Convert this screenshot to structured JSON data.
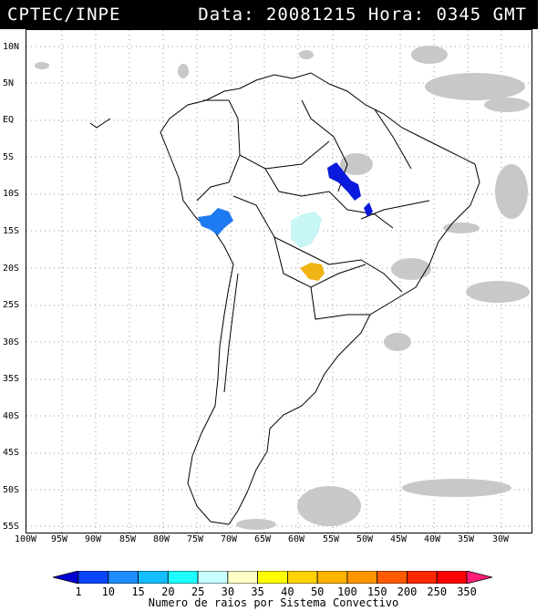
{
  "header": {
    "org": "CPTEC/INPE",
    "datetime": "Data: 20081215 Hora: 0345 GMT"
  },
  "map": {
    "lat_labels": [
      "10N",
      "5N",
      "EQ",
      "5S",
      "10S",
      "15S",
      "20S",
      "25S",
      "30S",
      "35S",
      "40S",
      "45S",
      "50S",
      "55S"
    ],
    "lon_labels": [
      "100W",
      "95W",
      "90W",
      "85W",
      "80W",
      "75W",
      "70W",
      "65W",
      "60W",
      "55W",
      "50W",
      "45W",
      "40W",
      "35W",
      "30W"
    ],
    "systems": [
      {
        "name": "system-north-brazil",
        "color": "#0a1adc"
      },
      {
        "name": "system-east-brazil",
        "color": "#0a1adc"
      },
      {
        "name": "system-peru",
        "color": "#1e7af0"
      },
      {
        "name": "system-central-brazil",
        "color": "#c8f5f5"
      },
      {
        "name": "system-paraguay",
        "color": "#f0b414"
      }
    ]
  },
  "legend": {
    "labels": [
      "1",
      "10",
      "15",
      "20",
      "25",
      "30",
      "35",
      "40",
      "50",
      "100",
      "150",
      "200",
      "250",
      "350"
    ],
    "colors": [
      "#0000d2",
      "#0a46ff",
      "#1e8cff",
      "#14beff",
      "#1effff",
      "#c8ffff",
      "#ffffc8",
      "#ffff00",
      "#ffd200",
      "#ffb400",
      "#ff9600",
      "#ff5a00",
      "#ff2800",
      "#ff0000",
      "#ff1e78"
    ],
    "title": "Numero de raios por Sistema Convectivo"
  }
}
